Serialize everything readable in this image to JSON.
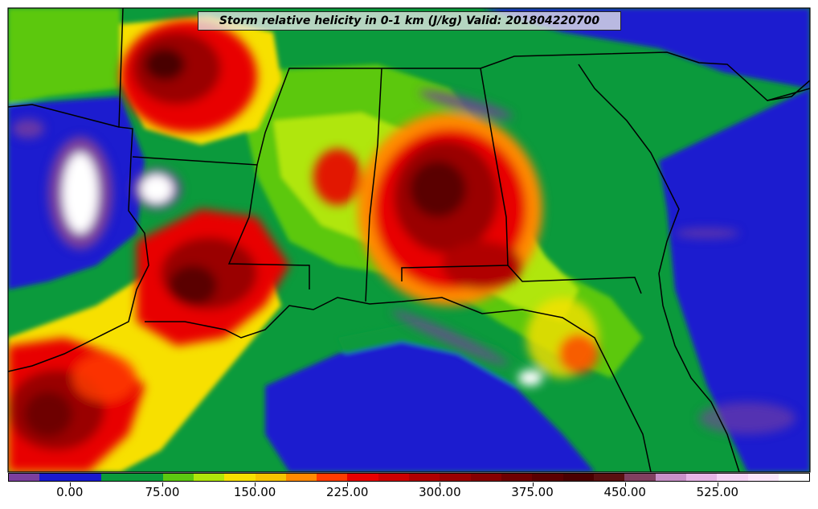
{
  "title": "Storm relative helicity in 0-1 km (J/kg) Valid: 201804220700",
  "colorbar": {
    "colors": [
      "#7b3f9e",
      "#1a1acf",
      "#1a1acf",
      "#0b9a3c",
      "#0b9a3c",
      "#5cc810",
      "#b0e60a",
      "#f7e000",
      "#f7c400",
      "#ff8a00",
      "#ff3c00",
      "#e80000",
      "#cc0000",
      "#b00000",
      "#9a0000",
      "#860000",
      "#6e0000",
      "#5a0000",
      "#4a0000",
      "#5a1010",
      "#804060",
      "#c890c8",
      "#e6b4e6",
      "#f5d4f5",
      "#fbe6fb",
      "#ffffff"
    ],
    "tick_labels": [
      "0.00",
      "75.00",
      "150.00",
      "225.00",
      "300.00",
      "375.00",
      "450.00",
      "525.00"
    ],
    "tick_values": [
      0,
      75,
      150,
      225,
      300,
      375,
      450,
      525
    ],
    "min": -50,
    "max": 600
  },
  "map": {
    "region": "southeastern-united-states",
    "field_colors": {
      "ocean_low": "#1a1acf",
      "low": "#0b9a3c",
      "moderate": "#5cc810",
      "elevated": "#f7e000",
      "high": "#e80000",
      "very_high": "#6e0000",
      "negative": "#7b3f9e",
      "extreme": "#ffffff"
    }
  }
}
